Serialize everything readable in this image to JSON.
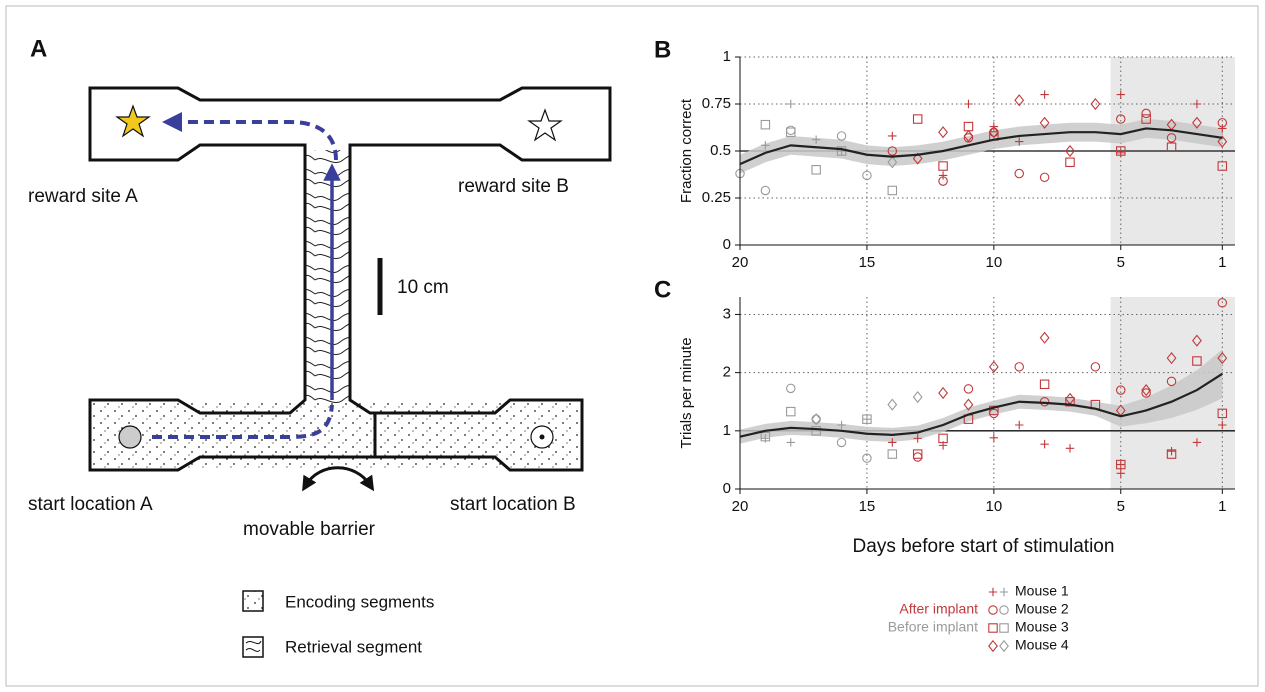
{
  "diagram": {
    "panel": "A",
    "labels": {
      "reward_a": "reward site A",
      "reward_b": "reward site B",
      "start_a": "start location A",
      "start_b": "start location B",
      "barrier": "movable barrier",
      "scale": "10 cm"
    },
    "key": {
      "encoding": "Encoding segments",
      "retrieval": "Retrieval segment"
    }
  },
  "legend": {
    "groups": {
      "after": {
        "name": "After implant",
        "color": "#c0393b"
      },
      "before": {
        "name": "Before implant",
        "color": "#9a9a9a"
      }
    },
    "entries": [
      {
        "name": "Mouse 1",
        "marker": "plus"
      },
      {
        "name": "Mouse 2",
        "marker": "circle"
      },
      {
        "name": "Mouse 3",
        "marker": "square"
      },
      {
        "name": "Mouse 4",
        "marker": "diamond"
      }
    ]
  },
  "chart_data": [
    {
      "type": "scatter",
      "panel": "B",
      "ylabel": "Fraction correct",
      "xlim": [
        20,
        0.5
      ],
      "ylim": [
        0,
        1
      ],
      "xticks": [
        20,
        15,
        10,
        5,
        1
      ],
      "yticks": [
        0,
        0.25,
        0.5,
        0.75,
        1
      ],
      "grid": true,
      "shaded_x": [
        5.4,
        0.5
      ],
      "reference_line": 0.5,
      "mean": {
        "color": "#222222",
        "band_color": "#c8c8c8",
        "x": [
          20,
          19,
          18,
          17,
          16,
          15,
          14,
          13,
          12,
          11,
          10,
          9,
          8,
          7,
          6,
          5,
          4,
          3,
          2,
          1
        ],
        "values": [
          0.43,
          0.49,
          0.53,
          0.52,
          0.51,
          0.48,
          0.47,
          0.48,
          0.5,
          0.53,
          0.56,
          0.58,
          0.59,
          0.6,
          0.6,
          0.59,
          0.62,
          0.61,
          0.59,
          0.57
        ],
        "lower": [
          0.38,
          0.44,
          0.48,
          0.47,
          0.46,
          0.43,
          0.42,
          0.43,
          0.45,
          0.48,
          0.51,
          0.53,
          0.54,
          0.55,
          0.55,
          0.54,
          0.57,
          0.56,
          0.54,
          0.52
        ],
        "upper": [
          0.48,
          0.54,
          0.58,
          0.57,
          0.56,
          0.53,
          0.52,
          0.53,
          0.55,
          0.58,
          0.61,
          0.63,
          0.64,
          0.65,
          0.65,
          0.64,
          0.67,
          0.66,
          0.64,
          0.62
        ]
      },
      "series": [
        {
          "after": {
            "x": [
              14,
              12,
              11,
              10,
              9,
              8,
              5,
              5,
              2,
              1
            ],
            "values": [
              0.58,
              0.37,
              0.75,
              0.63,
              0.55,
              0.8,
              0.8,
              0.49,
              0.75,
              0.62
            ]
          },
          "before": {
            "x": [
              19,
              18,
              17,
              16
            ],
            "values": [
              0.53,
              0.75,
              0.56,
              0.5
            ]
          }
        },
        {
          "after": {
            "x": [
              14,
              12,
              11,
              10,
              9,
              8,
              5,
              4,
              3,
              1
            ],
            "values": [
              0.5,
              0.34,
              0.57,
              0.6,
              0.38,
              0.36,
              0.67,
              0.7,
              0.57,
              0.65
            ]
          },
          "before": {
            "x": [
              20,
              19,
              18,
              16,
              15
            ],
            "values": [
              0.38,
              0.29,
              0.61,
              0.58,
              0.37
            ]
          }
        },
        {
          "after": {
            "x": [
              13,
              12,
              11,
              10,
              7,
              5,
              4,
              3,
              1
            ],
            "values": [
              0.67,
              0.42,
              0.63,
              0.58,
              0.44,
              0.5,
              0.67,
              0.52,
              0.42
            ]
          },
          "before": {
            "x": [
              19,
              18,
              17,
              16,
              14
            ],
            "values": [
              0.64,
              0.6,
              0.4,
              0.5,
              0.29
            ]
          }
        },
        {
          "after": {
            "x": [
              13,
              12,
              11,
              10,
              9,
              8,
              7,
              6,
              3,
              2,
              1
            ],
            "values": [
              0.46,
              0.6,
              0.58,
              0.6,
              0.77,
              0.65,
              0.5,
              0.75,
              0.64,
              0.65,
              0.55
            ]
          },
          "before": {
            "x": [
              14
            ],
            "values": [
              0.44
            ]
          }
        }
      ]
    },
    {
      "type": "scatter",
      "panel": "C",
      "ylabel": "Trials per minute",
      "xlabel": "Days before start of stimulation",
      "xlim": [
        20,
        0.5
      ],
      "ylim": [
        0,
        3.3
      ],
      "xticks": [
        20,
        15,
        10,
        5,
        1
      ],
      "yticks": [
        0,
        1,
        2,
        3
      ],
      "grid": true,
      "shaded_x": [
        5.4,
        0.5
      ],
      "reference_line": 1,
      "mean": {
        "color": "#222222",
        "band_color": "#c8c8c8",
        "x": [
          20,
          19,
          18,
          17,
          16,
          15,
          14,
          13,
          12,
          11,
          10,
          9,
          8,
          7,
          6,
          5,
          4,
          3,
          2,
          1
        ],
        "values": [
          0.9,
          1.0,
          1.05,
          1.03,
          1.0,
          0.95,
          0.93,
          0.97,
          1.1,
          1.28,
          1.4,
          1.5,
          1.48,
          1.45,
          1.38,
          1.25,
          1.35,
          1.5,
          1.7,
          1.98
        ],
        "lower": [
          0.78,
          0.88,
          0.93,
          0.91,
          0.88,
          0.83,
          0.81,
          0.85,
          0.98,
          1.16,
          1.28,
          1.38,
          1.36,
          1.33,
          1.26,
          1.07,
          1.13,
          1.22,
          1.36,
          1.56
        ],
        "upper": [
          1.02,
          1.12,
          1.17,
          1.15,
          1.12,
          1.07,
          1.05,
          1.09,
          1.22,
          1.4,
          1.52,
          1.62,
          1.6,
          1.57,
          1.5,
          1.43,
          1.57,
          1.78,
          2.04,
          2.4
        ]
      },
      "series": [
        {
          "after": {
            "x": [
              14,
              13,
              12,
              10,
              9,
              8,
              7,
              5,
              5,
              3,
              2,
              1
            ],
            "values": [
              0.8,
              0.87,
              0.75,
              0.88,
              1.1,
              0.77,
              0.7,
              0.42,
              0.27,
              0.65,
              0.8,
              1.1
            ]
          },
          "before": {
            "x": [
              19,
              18,
              16,
              15
            ],
            "values": [
              0.87,
              0.8,
              1.1,
              1.2
            ]
          }
        },
        {
          "after": {
            "x": [
              13,
              11,
              10,
              9,
              8,
              6,
              5,
              4,
              3,
              1
            ],
            "values": [
              0.55,
              1.72,
              1.3,
              2.1,
              1.5,
              2.1,
              1.7,
              1.65,
              1.85,
              3.2
            ]
          },
          "before": {
            "x": [
              18,
              17,
              16,
              15
            ],
            "values": [
              1.73,
              1.2,
              0.8,
              0.53
            ]
          }
        },
        {
          "after": {
            "x": [
              13,
              12,
              11,
              10,
              8,
              7,
              6,
              5,
              3,
              2,
              1
            ],
            "values": [
              0.6,
              0.87,
              1.2,
              1.35,
              1.8,
              1.5,
              1.45,
              0.42,
              0.6,
              2.2,
              1.3
            ]
          },
          "before": {
            "x": [
              19,
              18,
              17,
              15,
              14
            ],
            "values": [
              0.9,
              1.33,
              1.0,
              1.2,
              0.6
            ]
          }
        },
        {
          "after": {
            "x": [
              12,
              11,
              10,
              8,
              7,
              5,
              4,
              3,
              2,
              1
            ],
            "values": [
              1.65,
              1.45,
              2.1,
              2.6,
              1.55,
              1.35,
              1.7,
              2.25,
              2.55,
              2.25
            ]
          },
          "before": {
            "x": [
              17,
              14,
              13
            ],
            "values": [
              1.2,
              1.45,
              1.58
            ]
          }
        }
      ]
    }
  ]
}
